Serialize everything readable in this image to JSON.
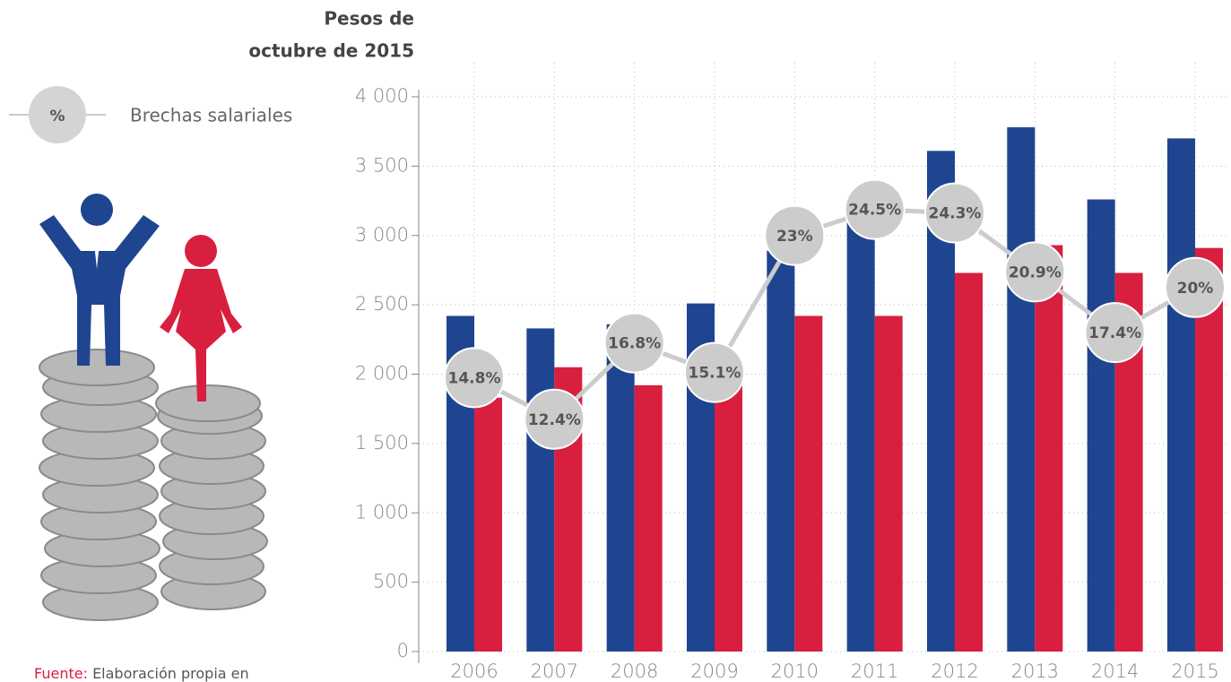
{
  "chart_data": {
    "type": "bar",
    "ylabel": [
      "Pesos de",
      "octubre de 2015"
    ],
    "categories": [
      "2006",
      "2007",
      "2008",
      "2009",
      "2010",
      "2011",
      "2012",
      "2013",
      "2014",
      "2015"
    ],
    "series": [
      {
        "color": "#1f4591",
        "values": [
          2420,
          2330,
          2360,
          2510,
          2890,
          3150,
          3610,
          3780,
          3260,
          3700
        ]
      },
      {
        "color": "#d81f3f",
        "values": [
          1830,
          2050,
          1920,
          1970,
          2420,
          2420,
          2730,
          2930,
          2730,
          2910
        ]
      },
      {
        "name": "Brechas salariales",
        "type": "line",
        "axis": "y2",
        "color": "#cccccc",
        "values": [
          14.8,
          12.4,
          16.8,
          15.1,
          23,
          24.5,
          24.3,
          20.9,
          17.4,
          20
        ],
        "value_labels": [
          "14.8%",
          "12.4%",
          "16.8%",
          "15.1%",
          "23%",
          "24.5%",
          "24.3%",
          "20.9%",
          "17.4%",
          "20%"
        ]
      }
    ],
    "legend_symbol": "%",
    "ylim": [
      0,
      4000
    ],
    "yticks": [
      0,
      500,
      {
        "value": 1000,
        "label": "1 000"
      },
      {
        "value": 1500,
        "label": "1 500"
      },
      {
        "value": 2000,
        "label": "2 000"
      },
      {
        "value": 2500,
        "label": "2 500"
      },
      {
        "value": 3000,
        "label": "3 000"
      },
      {
        "value": 3500,
        "label": "3 500"
      },
      {
        "value": 4000,
        "label": "4 000"
      }
    ],
    "y2lim": [
      -1,
      31
    ],
    "grid": true,
    "source": {
      "label": "Fuente:",
      "text": "Elaboración propia en"
    }
  }
}
